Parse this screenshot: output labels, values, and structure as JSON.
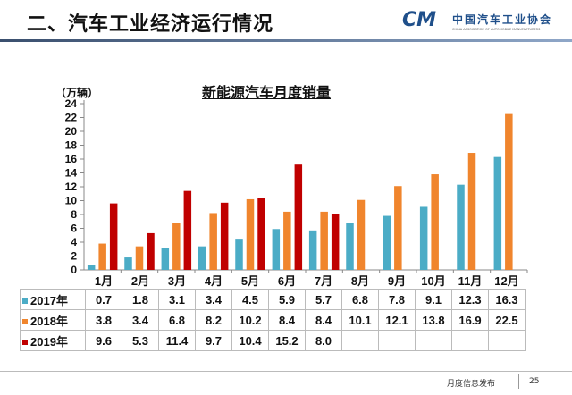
{
  "header": {
    "title": "二、汽车工业经济运行情况",
    "logo_cn": "中国汽车工业协会",
    "logo_en": "CHINA ASSOCIATION OF AUTOMOBILE MANUFACTURERS",
    "logo_mark": "CM"
  },
  "footer": {
    "text": "月度信息发布",
    "page": "25"
  },
  "chart_data": {
    "type": "bar",
    "title": "新能源汽车月度销量",
    "ylabel": "（万辆）",
    "ylim": [
      0,
      24
    ],
    "yticks": [
      0,
      2,
      4,
      6,
      8,
      10,
      12,
      14,
      16,
      18,
      20,
      22,
      24
    ],
    "grid": false,
    "legend": "table-rows",
    "categories": [
      "1月",
      "2月",
      "3月",
      "4月",
      "5月",
      "6月",
      "7月",
      "8月",
      "9月",
      "10月",
      "11月",
      "12月"
    ],
    "series": [
      {
        "name": "2017年",
        "color": "#4bacc6",
        "values": [
          0.7,
          1.8,
          3.1,
          3.4,
          4.5,
          5.9,
          5.7,
          6.8,
          7.8,
          9.1,
          12.3,
          16.3
        ]
      },
      {
        "name": "2018年",
        "color": "#f0852d",
        "values": [
          3.8,
          3.4,
          6.8,
          8.2,
          10.2,
          8.4,
          8.4,
          10.1,
          12.1,
          13.8,
          16.9,
          22.5
        ]
      },
      {
        "name": "2019年",
        "color": "#c00000",
        "values": [
          9.6,
          5.3,
          11.4,
          9.7,
          10.4,
          15.2,
          8.0,
          null,
          null,
          null,
          null,
          null
        ]
      }
    ]
  }
}
